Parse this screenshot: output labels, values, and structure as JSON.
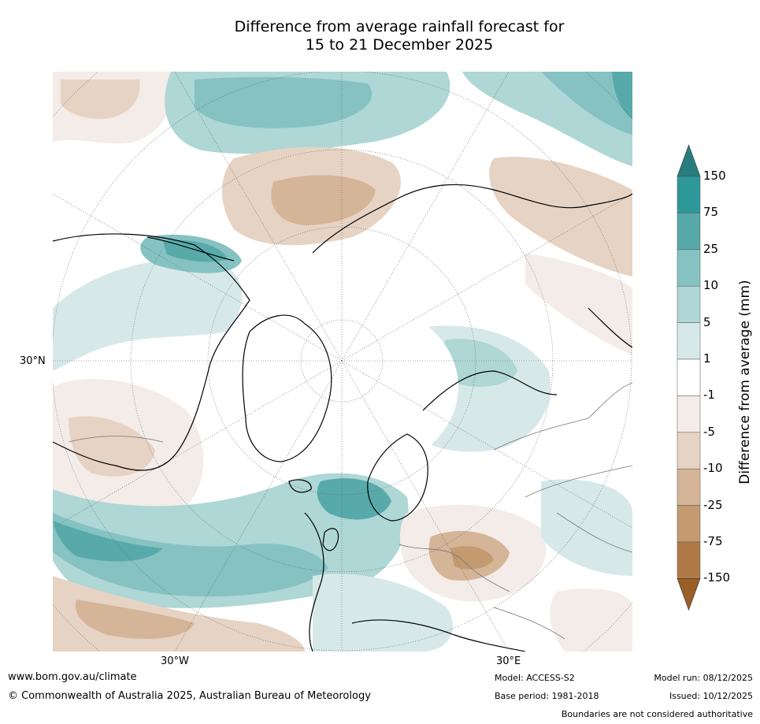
{
  "title": {
    "line1": "Difference from average rainfall forecast for",
    "line2": "15 to 21 December 2025"
  },
  "map": {
    "labels": {
      "lat_30n": "30°N",
      "lon_30w": "30°W",
      "lon_30e": "30°E"
    }
  },
  "colorbar": {
    "title": "Difference from average (mm)",
    "tick_labels": [
      "150",
      "75",
      "25",
      "10",
      "5",
      "1",
      "-1",
      "-5",
      "-10",
      "-25",
      "-75",
      "-150"
    ],
    "bins": [
      {
        "range": "75 to 150",
        "color": "#2e9898"
      },
      {
        "range": "25 to 75",
        "color": "#58aaaa"
      },
      {
        "range": "10 to 25",
        "color": "#86c2c2"
      },
      {
        "range": "5 to 10",
        "color": "#aed7d6"
      },
      {
        "range": "1 to 5",
        "color": "#d6e9e8"
      },
      {
        "range": "-1 to 1",
        "color": "#ffffff"
      },
      {
        "range": "-5 to -1",
        "color": "#f4ece8"
      },
      {
        "range": "-10 to -5",
        "color": "#e6d3c4"
      },
      {
        "range": "-25 to -10",
        "color": "#d5b597"
      },
      {
        "range": "-75 to -25",
        "color": "#c49a70"
      },
      {
        "range": "-150 to -75",
        "color": "#b07a48"
      }
    ],
    "over_color": "#277d7d",
    "under_color": "#9a5f27"
  },
  "footer": {
    "website": "www.bom.gov.au/climate",
    "copyright": "© Commonwealth of Australia 2025, Australian Bureau of Meteorology",
    "model": "Model: ACCESS-S2",
    "base_period": "Base period: 1981-2018",
    "model_run": "Model run: 08/12/2025",
    "issued": "Issued: 10/12/2025",
    "disclaimer": "Boundaries are not considered authoritative"
  }
}
